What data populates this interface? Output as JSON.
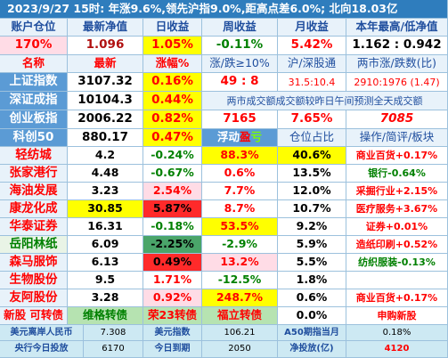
{
  "title": "2023/9/27  15时: 年涨9.6%,领先沪指9.0%,距高点差6.0%; 北向18.03亿",
  "account": {
    "headers": [
      "账户仓位",
      "最新净值",
      "日收益",
      "周收益",
      "月收益",
      "本年最高/低净值"
    ],
    "values": [
      "170%",
      "1.096",
      "1.05%",
      "-0.11%",
      "5.42%",
      "1.162 : 0.942"
    ]
  },
  "index_header": [
    "名称",
    "最新",
    "涨幅%",
    "涨/跌≥10%",
    "沪/深股通",
    "两市涨/跌数(比)"
  ],
  "indices": [
    {
      "name": "上证指数",
      "price": "3107.32",
      "change": "0.16%"
    },
    {
      "name": "深证成指",
      "price": "10104.3",
      "change": "0.44%"
    },
    {
      "name": "创业板指",
      "price": "2006.22",
      "change": "0.82%"
    },
    {
      "name": "科创50",
      "price": "880.17",
      "change": "0.47%"
    }
  ],
  "market": {
    "limit_ratio": "49 : 8",
    "connect": "31.5:10.4",
    "adv_dec": "2910:1976 (1.47)",
    "turnover_note": "两市成交额成交额较昨日午间预测全天成交额",
    "turnover": "7165",
    "turnover_change": "7.65%",
    "forecast": "7085"
  },
  "holdings_header": [
    "浮动盈亏",
    "仓位占比",
    "操作/简评/板块"
  ],
  "holdings": [
    {
      "name": "轻纺城",
      "price": "4.2",
      "change": "-0.24%",
      "pnl": "88.3%",
      "weight": "40.6%",
      "note": "商业百货+0.17%"
    },
    {
      "name": "张家港行",
      "price": "4.48",
      "change": "-0.67%",
      "pnl": "0.6%",
      "weight": "13.5%",
      "note": "银行-0.64%"
    },
    {
      "name": "海油发展",
      "price": "3.23",
      "change": "2.54%",
      "pnl": "7.7%",
      "weight": "12.0%",
      "note": "采掘行业+2.15%"
    },
    {
      "name": "康龙化成",
      "price": "30.85",
      "change": "5.87%",
      "pnl": "8.7%",
      "weight": "10.7%",
      "note": "医疗服务+3.67%"
    },
    {
      "name": "华泰证券",
      "price": "16.31",
      "change": "-0.18%",
      "pnl": "53.5%",
      "weight": "9.2%",
      "note": "证券+0.01%"
    },
    {
      "name": "岳阳林纸",
      "price": "6.09",
      "change": "-2.25%",
      "pnl": "-2.9%",
      "weight": "5.9%",
      "note": "造纸印刷+0.52%"
    },
    {
      "name": "森马服饰",
      "price": "6.13",
      "change": "0.49%",
      "pnl": "13.2%",
      "weight": "5.5%",
      "note": "纺织服装-0.13%"
    },
    {
      "name": "生物股份",
      "price": "9.5",
      "change": "1.71%",
      "pnl": "-12.5%",
      "weight": "1.8%",
      "note": ""
    },
    {
      "name": "友阿股份",
      "price": "3.28",
      "change": "0.92%",
      "pnl": "248.7%",
      "weight": "0.6%",
      "note": "商业百货+0.17%"
    }
  ],
  "new_row": [
    "新股 可转债",
    "维格转债",
    "荣23转债",
    "福立转债",
    "0.0%",
    "申购新股"
  ],
  "footer": {
    "row1": [
      "美元离岸人民币",
      "7.308",
      "美元指数",
      "106.21",
      "A50期指当月",
      "0.18%"
    ],
    "row2": [
      "央行今日投放",
      "6170",
      "今日到期",
      "2050",
      "净投放(亿)",
      "4120"
    ]
  }
}
